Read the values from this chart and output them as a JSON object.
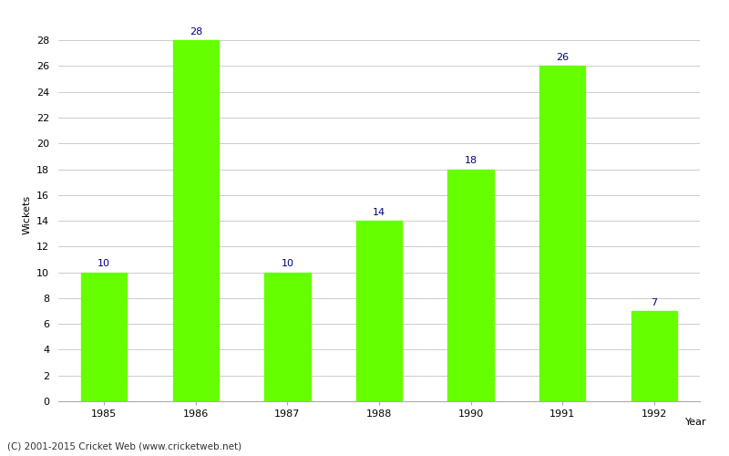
{
  "years": [
    "1985",
    "1986",
    "1987",
    "1988",
    "1990",
    "1991",
    "1992"
  ],
  "values": [
    10,
    28,
    10,
    14,
    18,
    26,
    7
  ],
  "bar_color": "#66ff00",
  "bar_edge_color": "#66ff00",
  "label_color": "#000080",
  "ylabel": "Wickets",
  "xlabel": "Year",
  "footer": "(C) 2001-2015 Cricket Web (www.cricketweb.net)",
  "ylim_max": 29,
  "yticks": [
    0,
    2,
    4,
    6,
    8,
    10,
    12,
    14,
    16,
    18,
    20,
    22,
    24,
    26,
    28
  ],
  "background_color": "#ffffff",
  "grid_color": "#cccccc",
  "label_fontsize": 8,
  "axis_tick_fontsize": 8,
  "axis_label_fontsize": 8,
  "footer_fontsize": 7.5,
  "bar_width": 0.5
}
